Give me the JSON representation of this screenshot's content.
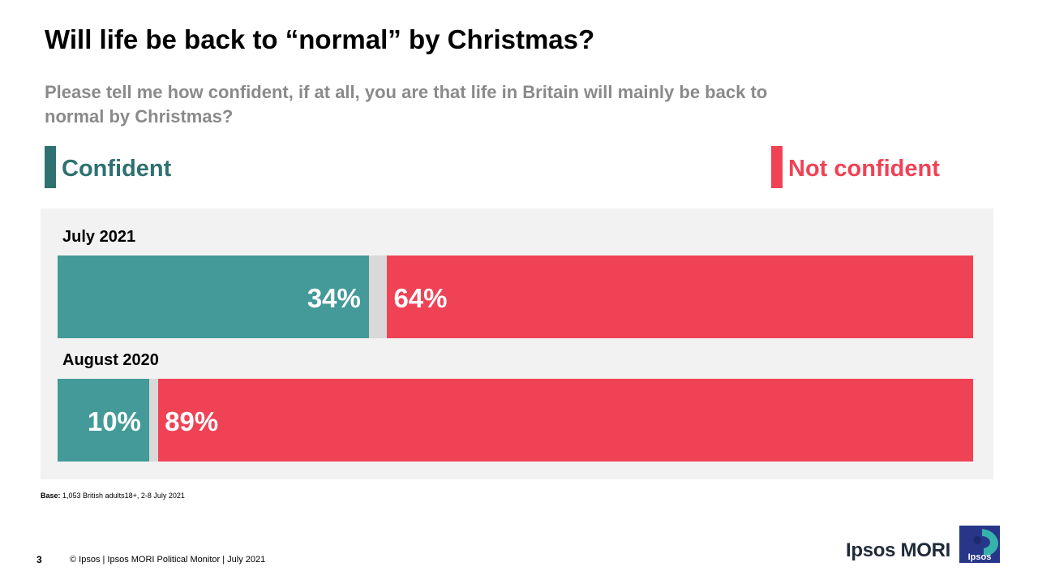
{
  "header": {
    "title": "Will life be back to “normal” by Christmas?",
    "subtitle": "Please tell me how confident, if at all, you are that life in Britain will mainly be back to normal by Christmas?"
  },
  "colors": {
    "confident": "#439a98",
    "not_confident": "#f04255",
    "neither": "#d9d9d9",
    "legend_confident_swatch": "#2f7170",
    "panel_background": "#f2f2f2"
  },
  "chart_data": {
    "type": "bar",
    "orientation": "horizontal",
    "stacked": true,
    "legend": [
      "Confident",
      "Not confident"
    ],
    "categories": [
      "July 2021",
      "August 2020"
    ],
    "series": [
      {
        "name": "Confident",
        "values": [
          34,
          10
        ],
        "labels": [
          "34%",
          "10%"
        ]
      },
      {
        "name": "Not confident",
        "values": [
          64,
          89
        ],
        "labels": [
          "64%",
          "89%"
        ]
      }
    ],
    "xlim": [
      0,
      100
    ]
  },
  "footer": {
    "base_label": "Base:",
    "base_text": "1,053 British adults18+, 2-8 July 2021",
    "page_number": "3",
    "copyright": "© Ipsos | Ipsos MORI Political Monitor | July 2021",
    "brand": "Ipsos MORI",
    "logo_text": "Ipsos"
  }
}
